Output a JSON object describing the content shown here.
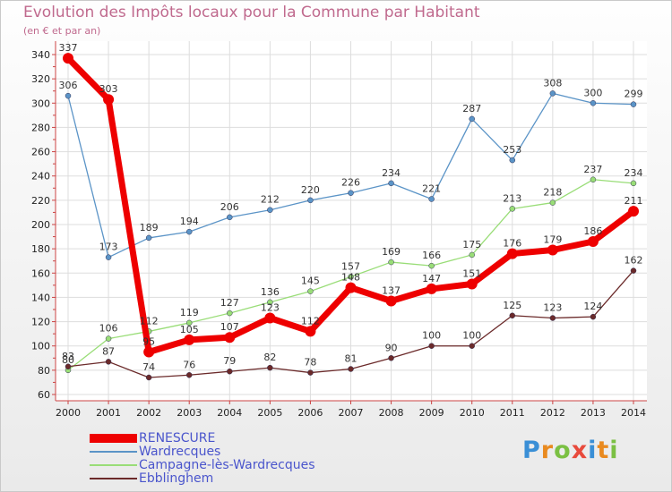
{
  "title": "Evolution des Impôts locaux pour la Commune par Habitant",
  "subtitle": "(en € et par an)",
  "logo": [
    "P",
    "r",
    "o",
    "x",
    "i",
    "t",
    "i"
  ],
  "colors": {
    "frame": "#c9c9c9",
    "title": "#c06a8e",
    "legend_text": "#4a55cc"
  },
  "chart_data": {
    "type": "line",
    "title": "Evolution des Impôts locaux pour la Commune par Habitant",
    "ylabel": "(en € et par an)",
    "xlabel": "",
    "categories": [
      "2000",
      "2001",
      "2002",
      "2003",
      "2004",
      "2005",
      "2006",
      "2007",
      "2008",
      "2009",
      "2010",
      "2011",
      "2012",
      "2013",
      "2014"
    ],
    "ylim": [
      60,
      340
    ],
    "yticks": [
      60,
      80,
      100,
      120,
      140,
      160,
      180,
      200,
      220,
      240,
      260,
      280,
      300,
      320,
      340
    ],
    "grid": true,
    "legend_position": "bottom-left",
    "series": [
      {
        "name": "RENESCURE",
        "color": "#ee0000",
        "values": [
          337,
          303,
          95,
          105,
          107,
          123,
          112,
          148,
          137,
          147,
          151,
          176,
          179,
          186,
          211
        ]
      },
      {
        "name": "Wardrecques",
        "color": "#5b94c7",
        "values": [
          306,
          173,
          189,
          194,
          206,
          212,
          220,
          226,
          234,
          221,
          287,
          253,
          308,
          300,
          299
        ]
      },
      {
        "name": "Campagne-lès-Wardrecques",
        "color": "#99dd77",
        "values": [
          80,
          106,
          112,
          119,
          127,
          136,
          145,
          157,
          169,
          166,
          175,
          213,
          218,
          237,
          234
        ]
      },
      {
        "name": "Ebblinghem",
        "color": "#6b2a2a",
        "values": [
          83,
          87,
          74,
          76,
          79,
          82,
          78,
          81,
          90,
          100,
          100,
          125,
          123,
          124,
          162
        ]
      }
    ]
  }
}
